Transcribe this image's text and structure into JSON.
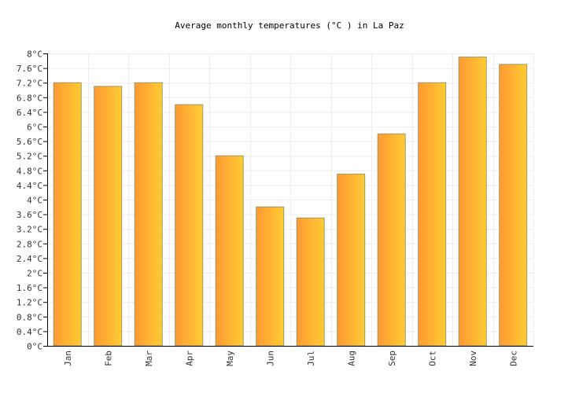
{
  "chart_data": {
    "type": "bar",
    "title": "Average monthly temperatures (°C ) in La Paz",
    "categories": [
      "Jan",
      "Feb",
      "Mar",
      "Apr",
      "May",
      "Jun",
      "Jul",
      "Aug",
      "Sep",
      "Oct",
      "Nov",
      "Dec"
    ],
    "values": [
      7.2,
      7.1,
      7.2,
      6.6,
      5.2,
      3.8,
      3.5,
      4.7,
      5.8,
      7.2,
      7.9,
      7.7
    ],
    "ylim": [
      0,
      8
    ],
    "ytick_step": 0.4,
    "ytick_suffix": "°C",
    "grid": true,
    "bar_gradient": [
      "#ff9933",
      "#ffcc33"
    ],
    "bar_stroke": "#999966"
  }
}
